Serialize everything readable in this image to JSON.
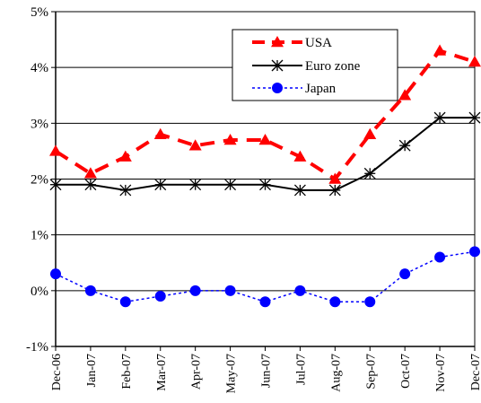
{
  "chart_data": {
    "type": "line",
    "title": "",
    "xlabel": "",
    "ylabel": "",
    "categories": [
      "Dec-06",
      "Jan-07",
      "Feb-07",
      "Mar-07",
      "Apr-07",
      "May-07",
      "Jun-07",
      "Jul-07",
      "Aug-07",
      "Sep-07",
      "Oct-07",
      "Nov-07",
      "Dec-07"
    ],
    "y_tick_labels": [
      "-1%",
      "0%",
      "1%",
      "2%",
      "3%",
      "4%",
      "5%"
    ],
    "y_ticks": [
      -1,
      0,
      1,
      2,
      3,
      4,
      5
    ],
    "ylim": [
      -1,
      5
    ],
    "grid": "horizontal",
    "legend_position": "top-right",
    "series": [
      {
        "name": "USA",
        "color": "#ff0000",
        "line_style": "dashed",
        "marker": "triangle",
        "values": [
          2.5,
          2.1,
          2.4,
          2.8,
          2.6,
          2.7,
          2.7,
          2.4,
          2.0,
          2.8,
          3.5,
          4.3,
          4.1
        ]
      },
      {
        "name": "Euro zone",
        "color": "#000000",
        "line_style": "solid",
        "marker": "asterisk",
        "values": [
          1.9,
          1.9,
          1.8,
          1.9,
          1.9,
          1.9,
          1.9,
          1.8,
          1.8,
          2.1,
          2.6,
          3.1,
          3.1
        ]
      },
      {
        "name": "Japan",
        "color": "#0000ff",
        "line_style": "dotted",
        "marker": "circle",
        "values": [
          0.3,
          0.0,
          -0.2,
          -0.1,
          0.0,
          0.0,
          -0.2,
          0.0,
          -0.2,
          -0.2,
          0.3,
          0.6,
          0.7
        ]
      }
    ]
  }
}
